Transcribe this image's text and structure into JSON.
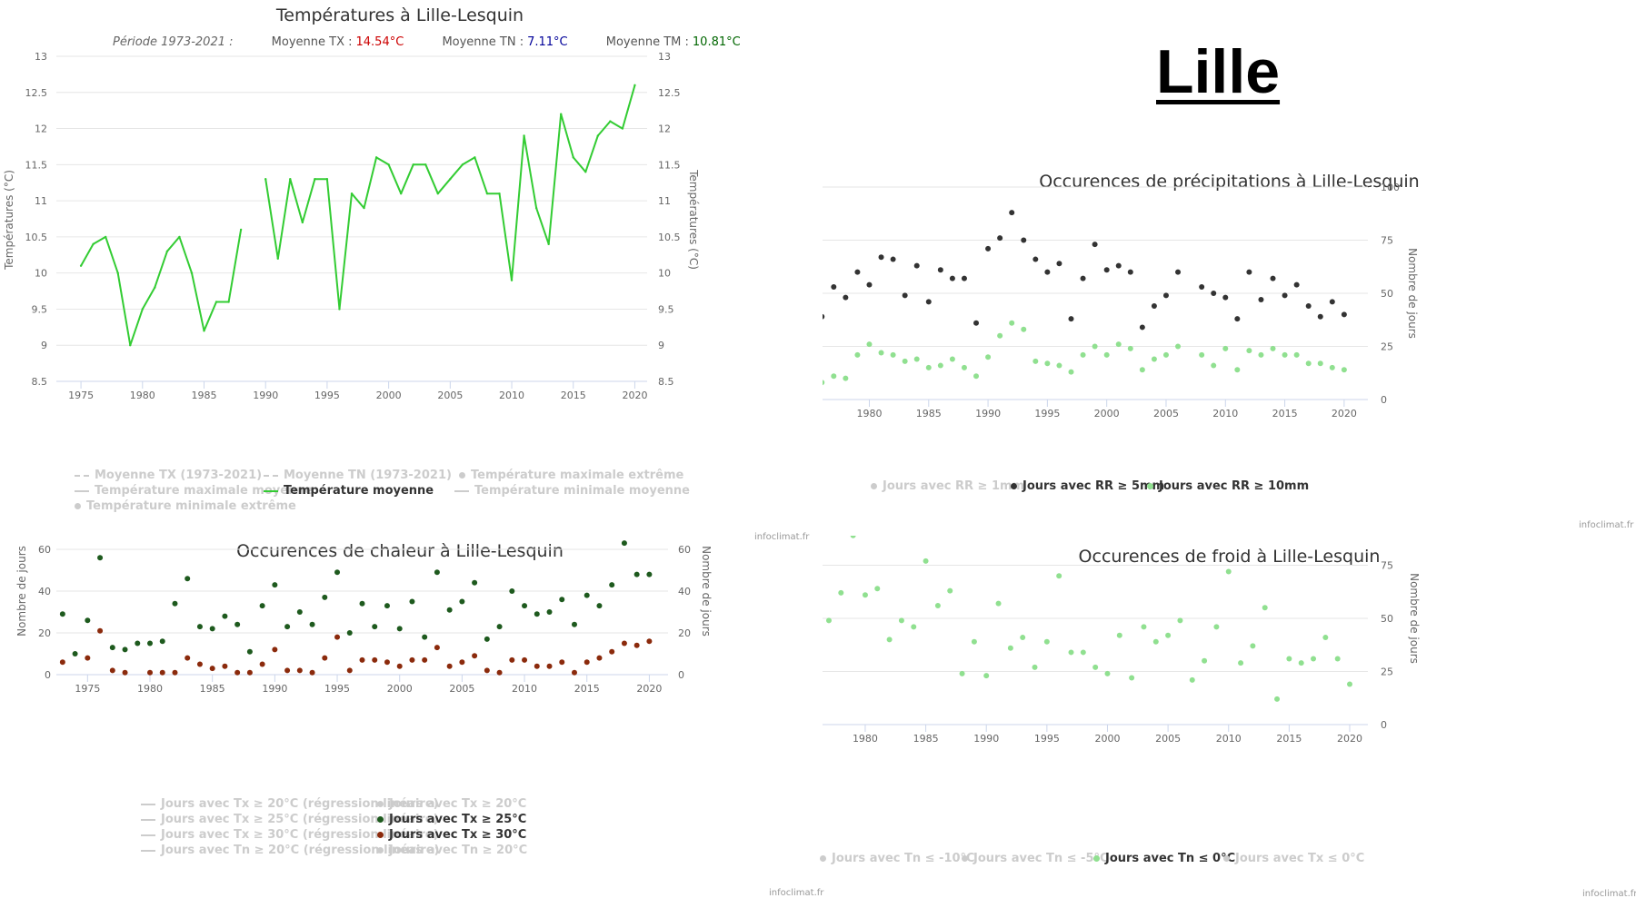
{
  "city": "Lille",
  "credit": "infoclimat.fr",
  "colors": {
    "green_line": "#33cc33",
    "dark_green": "#1e5a1e",
    "brown": "#8b2a0c",
    "light_green": "#90e090",
    "dark": "#333333",
    "off": "#cccccc",
    "tx": "#cc0000",
    "tn": "#000099",
    "tm": "#006600"
  },
  "chart_data": [
    {
      "id": "temp",
      "type": "line",
      "title": "Températures à Lille-Lesquin",
      "period_label": "Période 1973-2021 :",
      "stats": [
        {
          "label": "Moyenne TX :",
          "value": "14.54°C",
          "color": "#cc0000"
        },
        {
          "label": "Moyenne TN :",
          "value": "7.11°C",
          "color": "#000099"
        },
        {
          "label": "Moyenne TM :",
          "value": "10.81°C",
          "color": "#006600"
        }
      ],
      "ylabel": "Températures (°C)",
      "ylim": [
        8.5,
        13
      ],
      "yticks": [
        "8.5",
        "9",
        "9.5",
        "10",
        "10.5",
        "11",
        "11.5",
        "12",
        "12.5",
        "13"
      ],
      "xlim": [
        1973,
        2021
      ],
      "xticks": [
        "1975",
        "1980",
        "1985",
        "1990",
        "1995",
        "2000",
        "2005",
        "2010",
        "2015",
        "2020"
      ],
      "grid": true,
      "series": [
        {
          "name": "Température moyenne",
          "x_start": 1975,
          "values": [
            10.1,
            10.4,
            10.5,
            10.0,
            9.0,
            9.5,
            9.8,
            10.3,
            10.5,
            10.0,
            9.2,
            9.6,
            9.6,
            10.6,
            null,
            11.3,
            10.2,
            11.3,
            10.7,
            11.3,
            11.3,
            9.5,
            11.1,
            10.9,
            11.6,
            11.5,
            11.1,
            11.5,
            11.5,
            11.1,
            11.3,
            11.5,
            11.6,
            11.1,
            11.1,
            9.9,
            11.9,
            10.9,
            10.4,
            12.2,
            11.6,
            11.4,
            11.9,
            12.1,
            12.0,
            12.6
          ]
        }
      ],
      "legend": [
        {
          "label": "Moyenne TX (1973-2021)",
          "symbol": "dash",
          "on": false
        },
        {
          "label": "Moyenne TN (1973-2021)",
          "symbol": "dash",
          "on": false
        },
        {
          "label": "Température maximale extrême",
          "symbol": "dot",
          "on": false
        },
        {
          "label": "Température maximale moyenne",
          "symbol": "line",
          "on": false
        },
        {
          "label": "Température moyenne",
          "symbol": "line",
          "on": true,
          "color": "#33cc33"
        },
        {
          "label": "Température minimale moyenne",
          "symbol": "line",
          "on": false
        },
        {
          "label": "Température minimale extrême",
          "symbol": "dot",
          "on": false
        }
      ]
    },
    {
      "id": "precip",
      "type": "scatter",
      "title": "Occurences de précipitations à Lille-Lesquin",
      "ylabel": "Nombre de jours",
      "ylim": [
        0,
        100
      ],
      "yticks": [
        "0",
        "25",
        "50",
        "75",
        "100"
      ],
      "xlim": [
        1972,
        2022
      ],
      "xticks": [
        "1975",
        "1980",
        "1985",
        "1990",
        "1995",
        "2000",
        "2005",
        "2010",
        "2015",
        "2020"
      ],
      "grid": true,
      "series": [
        {
          "name": "Jours avec RR ≥ 5mm",
          "x_start": 1975,
          "values": [
            45,
            39,
            53,
            48,
            60,
            54,
            67,
            66,
            49,
            63,
            46,
            61,
            57,
            57,
            36,
            71,
            76,
            88,
            75,
            66,
            60,
            64,
            38,
            57,
            73,
            61,
            63,
            60,
            34,
            44,
            49,
            60,
            null,
            53,
            50,
            48,
            38,
            60,
            47,
            57,
            49,
            54,
            44,
            39,
            46,
            40
          ]
        },
        {
          "name": "Jours avec RR ≥ 10mm",
          "x_start": 1975,
          "values": [
            21,
            8,
            11,
            10,
            21,
            26,
            22,
            21,
            18,
            19,
            15,
            16,
            19,
            15,
            11,
            20,
            30,
            36,
            33,
            18,
            17,
            16,
            13,
            21,
            25,
            21,
            26,
            24,
            14,
            19,
            21,
            25,
            null,
            21,
            16,
            24,
            14,
            23,
            21,
            24,
            21,
            21,
            17,
            17,
            15,
            14
          ]
        }
      ],
      "legend": [
        {
          "label": "Jours avec RR ≥ 1mm",
          "symbol": "dot",
          "on": false
        },
        {
          "label": "Jours avec RR ≥ 5mm",
          "symbol": "dot",
          "on": true,
          "color": "#333333"
        },
        {
          "label": "Jours avec RR ≥ 10mm",
          "symbol": "dot",
          "on": true,
          "color": "#90e090"
        }
      ]
    },
    {
      "id": "heat",
      "type": "scatter",
      "title": "Occurences de chaleur à Lille-Lesquin",
      "ylabel": "Nombre de jours",
      "ylim": [
        0,
        80
      ],
      "yticks": [
        "0",
        "20",
        "40",
        "60",
        "80"
      ],
      "xlim": [
        1972.5,
        2021.5
      ],
      "xticks": [
        "1975",
        "1980",
        "1985",
        "1990",
        "1995",
        "2000",
        "2005",
        "2010",
        "2015",
        "2020"
      ],
      "grid": true,
      "series": [
        {
          "name": "Jours avec Tx ≥ 25°C",
          "x_start": 1973,
          "values": [
            29,
            10,
            26,
            56,
            13,
            12,
            15,
            15,
            16,
            34,
            46,
            23,
            22,
            28,
            24,
            11,
            33,
            43,
            23,
            30,
            24,
            37,
            49,
            20,
            34,
            23,
            33,
            22,
            35,
            18,
            49,
            31,
            35,
            44,
            17,
            23,
            40,
            33,
            29,
            30,
            36,
            24,
            38,
            33,
            43,
            63,
            48,
            48
          ]
        },
        {
          "name": "Jours avec Tx ≥ 30°C",
          "x_start": 1973,
          "values": [
            6,
            null,
            8,
            21,
            2,
            1,
            null,
            1,
            1,
            1,
            8,
            5,
            3,
            4,
            1,
            1,
            5,
            12,
            2,
            2,
            1,
            8,
            18,
            2,
            7,
            7,
            6,
            4,
            7,
            7,
            13,
            4,
            6,
            9,
            2,
            1,
            7,
            7,
            4,
            4,
            6,
            1,
            6,
            8,
            11,
            15,
            14,
            16
          ]
        }
      ],
      "legend": [
        {
          "label": "Jours avec Tx ≥ 20°C (régression linéaire)",
          "symbol": "line",
          "on": false
        },
        {
          "label": "Jours avec Tx ≥ 20°C",
          "symbol": "dot",
          "on": false
        },
        {
          "label": "Jours avec Tx ≥ 25°C (régression linéaire)",
          "symbol": "line",
          "on": false
        },
        {
          "label": "Jours avec Tx ≥ 25°C",
          "symbol": "dot",
          "on": true,
          "color": "#1e5a1e"
        },
        {
          "label": "Jours avec Tx ≥ 30°C (régression linéaire)",
          "symbol": "line",
          "on": false
        },
        {
          "label": "Jours avec Tx ≥ 30°C",
          "symbol": "dot",
          "on": true,
          "color": "#8b2a0c"
        },
        {
          "label": "Jours avec Tn ≥ 20°C (régression linéaire)",
          "symbol": "line",
          "on": false
        },
        {
          "label": "Jours avec Tn ≥ 20°C",
          "symbol": "dot",
          "on": false
        }
      ]
    },
    {
      "id": "cold",
      "type": "scatter",
      "title": "Occurences de froid à Lille-Lesquin",
      "ylabel": "Nombre de jours",
      "ylim": [
        0,
        100
      ],
      "yticks": [
        "0",
        "25",
        "50",
        "75",
        "100"
      ],
      "xlim": [
        1972.5,
        2021.5
      ],
      "xticks": [
        "1975",
        "1980",
        "1985",
        "1990",
        "1995",
        "2000",
        "2005",
        "2010",
        "2015",
        "2020"
      ],
      "grid": true,
      "series": [
        {
          "name": "Jours avec Tn ≤ 0°C",
          "x_start": 1973,
          "values": [
            59,
            20,
            49,
            66,
            49,
            62,
            89,
            61,
            64,
            40,
            49,
            46,
            77,
            56,
            63,
            24,
            39,
            23,
            57,
            36,
            41,
            27,
            39,
            70,
            34,
            34,
            27,
            24,
            42,
            22,
            46,
            39,
            42,
            49,
            21,
            30,
            46,
            72,
            29,
            37,
            55,
            12,
            31,
            29,
            31,
            41,
            31,
            19
          ]
        }
      ],
      "legend": [
        {
          "label": "Jours avec Tn ≤ -10°C",
          "symbol": "dot",
          "on": false
        },
        {
          "label": "Jours avec Tn ≤ -5°C",
          "symbol": "dot",
          "on": false
        },
        {
          "label": "Jours avec Tn ≤ 0°C",
          "symbol": "dot",
          "on": true,
          "color": "#90e090"
        },
        {
          "label": "Jours avec Tx ≤ 0°C",
          "symbol": "dot",
          "on": false
        }
      ]
    }
  ]
}
